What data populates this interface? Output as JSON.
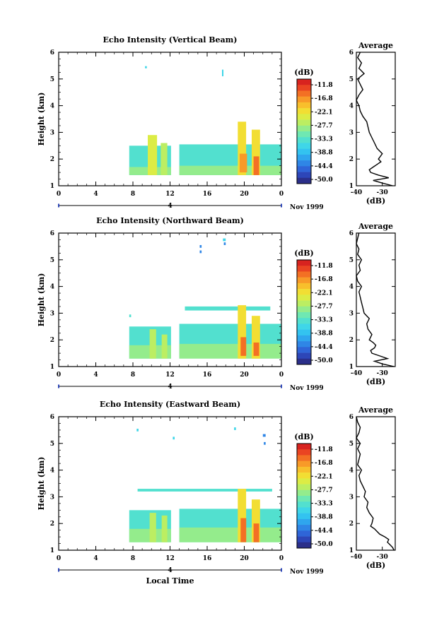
{
  "chart_data": {
    "type": "heatmap",
    "colorbar": {
      "unit": "(dB)",
      "ticks": [
        "-11.8",
        "-16.8",
        "-22.1",
        "-27.7",
        "-33.3",
        "-38.8",
        "-44.4",
        "-50.0"
      ],
      "range": [
        -52,
        -8
      ],
      "colors": [
        "#2b2f8a",
        "#2d46b8",
        "#2f65d8",
        "#2f86e6",
        "#2fa6ee",
        "#33c3f0",
        "#3fd6e8",
        "#52e0cf",
        "#6fe8b2",
        "#94ec8c",
        "#bcee62",
        "#dcec45",
        "#f2de33",
        "#f8bf2c",
        "#f89a28",
        "#f37024",
        "#ea4422",
        "#d8231f"
      ]
    },
    "panels": [
      {
        "title": "Echo Intensity (Vertical Beam)",
        "ylabel": "Height (km)",
        "xlim": [
          0,
          24
        ],
        "ylim": [
          1,
          6
        ],
        "xticks": [
          "0",
          "4",
          "8",
          "12",
          "16",
          "20",
          "0"
        ],
        "yticks": [
          "1",
          "2",
          "3",
          "4",
          "5",
          "6"
        ],
        "date_label": "4",
        "date_suffix": "Nov 1999",
        "profile": {
          "title": "Average",
          "xlabel": "(dB)",
          "xticks": [
            "-40",
            "-30"
          ],
          "xlim": [
            -40,
            -25
          ],
          "height": [
            1.0,
            1.1,
            1.2,
            1.3,
            1.4,
            1.5,
            1.6,
            1.7,
            1.8,
            1.9,
            2.0,
            2.2,
            2.4,
            2.6,
            2.8,
            3.0,
            3.2,
            3.4,
            3.6,
            3.8,
            4.0,
            4.2,
            4.4,
            4.6,
            4.8,
            5.0,
            5.2,
            5.4,
            5.6,
            5.8,
            6.0
          ],
          "value": [
            -26.0,
            -30.0,
            -33.5,
            -27.5,
            -31.5,
            -34.5,
            -35.0,
            -33.5,
            -32.0,
            -30.5,
            -31.5,
            -30.0,
            -32.0,
            -33.0,
            -34.0,
            -35.0,
            -35.5,
            -36.0,
            -37.5,
            -38.5,
            -39.0,
            -40.0,
            -39.0,
            -37.5,
            -38.5,
            -39.5,
            -37.0,
            -39.0,
            -38.0,
            -39.5,
            -38.5
          ]
        },
        "data": [
          {
            "x0": 7.6,
            "x1": 12.1,
            "y0": 1.4,
            "y1": 2.5,
            "dB": -33
          },
          {
            "x0": 13.0,
            "x1": 24.0,
            "y0": 1.4,
            "y1": 2.55,
            "dB": -33
          },
          {
            "x0": 7.6,
            "x1": 12.1,
            "y0": 1.4,
            "y1": 1.7,
            "dB": -29
          },
          {
            "x0": 13.0,
            "x1": 24.0,
            "y0": 1.4,
            "y1": 1.75,
            "dB": -29
          },
          {
            "x0": 9.6,
            "x1": 10.6,
            "y0": 1.4,
            "y1": 2.9,
            "dB": -25
          },
          {
            "x0": 11.0,
            "x1": 11.7,
            "y0": 1.4,
            "y1": 2.6,
            "dB": -27
          },
          {
            "x0": 19.3,
            "x1": 20.2,
            "y0": 1.4,
            "y1": 3.4,
            "dB": -22
          },
          {
            "x0": 20.8,
            "x1": 21.7,
            "y0": 1.4,
            "y1": 3.1,
            "dB": -22
          },
          {
            "x0": 19.5,
            "x1": 20.3,
            "y0": 1.5,
            "y1": 2.2,
            "dB": -16
          },
          {
            "x0": 21.0,
            "x1": 21.6,
            "y0": 1.4,
            "y1": 2.1,
            "dB": -14
          },
          {
            "x0": 9.3,
            "x1": 9.5,
            "y0": 5.4,
            "y1": 5.48,
            "dB": -36
          },
          {
            "x0": 17.6,
            "x1": 17.75,
            "y0": 5.1,
            "y1": 5.35,
            "dB": -37
          }
        ]
      },
      {
        "title": "Echo Intensity (Northward Beam)",
        "ylabel": "Height (km)",
        "xlim": [
          0,
          24
        ],
        "ylim": [
          1,
          6
        ],
        "xticks": [
          "0",
          "4",
          "8",
          "12",
          "16",
          "20",
          "0"
        ],
        "yticks": [
          "1",
          "2",
          "3",
          "4",
          "5",
          "6"
        ],
        "date_label": "4",
        "date_suffix": "Nov 1999",
        "profile": {
          "title": "Average",
          "xlabel": "(dB)",
          "xticks": [
            "-40",
            "-30"
          ],
          "xlim": [
            -40,
            -25
          ],
          "height": [
            1.0,
            1.1,
            1.2,
            1.3,
            1.4,
            1.5,
            1.6,
            1.7,
            1.8,
            1.9,
            2.0,
            2.2,
            2.4,
            2.6,
            2.8,
            3.0,
            3.2,
            3.4,
            3.6,
            3.8,
            4.0,
            4.2,
            4.4,
            4.6,
            4.8,
            5.0,
            5.2,
            5.4,
            5.6,
            5.8,
            6.0
          ],
          "value": [
            -25.5,
            -30.0,
            -33.0,
            -28.0,
            -31.0,
            -34.0,
            -34.5,
            -33.0,
            -32.5,
            -33.5,
            -35.0,
            -34.0,
            -35.5,
            -36.0,
            -35.0,
            -37.0,
            -37.5,
            -38.0,
            -38.5,
            -39.0,
            -38.0,
            -39.5,
            -40.0,
            -38.5,
            -39.0,
            -38.0,
            -39.5,
            -39.0,
            -40.0,
            -39.5,
            -39.0
          ]
        },
        "data": [
          {
            "x0": 7.6,
            "x1": 12.1,
            "y0": 1.3,
            "y1": 2.5,
            "dB": -33
          },
          {
            "x0": 13.0,
            "x1": 24.0,
            "y0": 1.3,
            "y1": 2.6,
            "dB": -33
          },
          {
            "x0": 7.6,
            "x1": 12.1,
            "y0": 1.3,
            "y1": 1.8,
            "dB": -29
          },
          {
            "x0": 13.0,
            "x1": 24.0,
            "y0": 1.3,
            "y1": 1.85,
            "dB": -29
          },
          {
            "x0": 13.6,
            "x1": 22.8,
            "y0": 3.1,
            "y1": 3.25,
            "dB": -33
          },
          {
            "x0": 9.8,
            "x1": 10.5,
            "y0": 1.3,
            "y1": 2.4,
            "dB": -26
          },
          {
            "x0": 11.1,
            "x1": 11.7,
            "y0": 1.3,
            "y1": 2.2,
            "dB": -27
          },
          {
            "x0": 19.3,
            "x1": 20.2,
            "y0": 1.3,
            "y1": 3.3,
            "dB": -22
          },
          {
            "x0": 20.8,
            "x1": 21.7,
            "y0": 1.3,
            "y1": 2.9,
            "dB": -22
          },
          {
            "x0": 19.6,
            "x1": 20.2,
            "y0": 1.4,
            "y1": 2.1,
            "dB": -15
          },
          {
            "x0": 21.0,
            "x1": 21.6,
            "y0": 1.4,
            "y1": 1.9,
            "dB": -14
          },
          {
            "x0": 7.6,
            "x1": 7.8,
            "y0": 2.85,
            "y1": 2.95,
            "dB": -34
          },
          {
            "x0": 15.2,
            "x1": 15.4,
            "y0": 5.45,
            "y1": 5.55,
            "dB": -44
          },
          {
            "x0": 15.2,
            "x1": 15.4,
            "y0": 5.25,
            "y1": 5.35,
            "dB": -44
          },
          {
            "x0": 17.7,
            "x1": 18.0,
            "y0": 5.7,
            "y1": 5.8,
            "dB": -36
          },
          {
            "x0": 17.8,
            "x1": 18.0,
            "y0": 5.55,
            "y1": 5.65,
            "dB": -44
          }
        ]
      },
      {
        "title": "Echo Intensity (Eastward Beam)",
        "ylabel": "Height (km)",
        "xlabel": "Local Time",
        "xlim": [
          0,
          24
        ],
        "ylim": [
          1,
          6
        ],
        "xticks": [
          "0",
          "4",
          "8",
          "12",
          "16",
          "20",
          "0"
        ],
        "yticks": [
          "1",
          "2",
          "3",
          "4",
          "5",
          "6"
        ],
        "date_label": "4",
        "date_suffix": "Nov 1999",
        "profile": {
          "title": "Average",
          "xlabel": "(dB)",
          "xticks": [
            "-40",
            "-30"
          ],
          "xlim": [
            -40,
            -25
          ],
          "height": [
            1.0,
            1.1,
            1.2,
            1.3,
            1.4,
            1.5,
            1.6,
            1.7,
            1.8,
            1.9,
            2.0,
            2.2,
            2.4,
            2.6,
            2.8,
            3.0,
            3.2,
            3.4,
            3.6,
            3.8,
            4.0,
            4.2,
            4.4,
            4.6,
            4.8,
            5.0,
            5.2,
            5.4,
            5.6,
            5.8,
            6.0
          ],
          "value": [
            -25.5,
            -26.0,
            -27.0,
            -28.0,
            -27.5,
            -29.0,
            -31.0,
            -32.0,
            -33.0,
            -34.5,
            -34.0,
            -33.5,
            -35.0,
            -36.0,
            -35.5,
            -37.0,
            -36.5,
            -37.5,
            -38.5,
            -39.0,
            -38.0,
            -39.5,
            -39.0,
            -38.5,
            -39.5,
            -38.5,
            -40.0,
            -39.0,
            -38.5,
            -39.5,
            -40.0
          ]
        },
        "data": [
          {
            "x0": 7.6,
            "x1": 12.1,
            "y0": 1.3,
            "y1": 2.5,
            "dB": -33
          },
          {
            "x0": 13.0,
            "x1": 24.0,
            "y0": 1.3,
            "y1": 2.55,
            "dB": -33
          },
          {
            "x0": 7.6,
            "x1": 12.1,
            "y0": 1.3,
            "y1": 1.8,
            "dB": -29
          },
          {
            "x0": 13.0,
            "x1": 24.0,
            "y0": 1.3,
            "y1": 1.85,
            "dB": -29
          },
          {
            "x0": 8.5,
            "x1": 23.0,
            "y0": 3.2,
            "y1": 3.3,
            "dB": -33
          },
          {
            "x0": 9.8,
            "x1": 10.5,
            "y0": 1.3,
            "y1": 2.4,
            "dB": -26
          },
          {
            "x0": 11.1,
            "x1": 11.7,
            "y0": 1.3,
            "y1": 2.3,
            "dB": -27
          },
          {
            "x0": 19.3,
            "x1": 20.2,
            "y0": 1.3,
            "y1": 3.3,
            "dB": -22
          },
          {
            "x0": 20.8,
            "x1": 21.7,
            "y0": 1.3,
            "y1": 2.9,
            "dB": -22
          },
          {
            "x0": 19.6,
            "x1": 20.2,
            "y0": 1.3,
            "y1": 2.2,
            "dB": -14
          },
          {
            "x0": 21.0,
            "x1": 21.6,
            "y0": 1.3,
            "y1": 2.0,
            "dB": -14
          },
          {
            "x0": 8.4,
            "x1": 8.6,
            "y0": 5.45,
            "y1": 5.55,
            "dB": -36
          },
          {
            "x0": 12.3,
            "x1": 12.5,
            "y0": 5.15,
            "y1": 5.25,
            "dB": -36
          },
          {
            "x0": 18.9,
            "x1": 19.1,
            "y0": 5.5,
            "y1": 5.6,
            "dB": -36
          },
          {
            "x0": 22.0,
            "x1": 22.3,
            "y0": 5.25,
            "y1": 5.35,
            "dB": -44
          },
          {
            "x0": 22.1,
            "x1": 22.3,
            "y0": 4.95,
            "y1": 5.05,
            "dB": -44
          }
        ]
      }
    ]
  }
}
